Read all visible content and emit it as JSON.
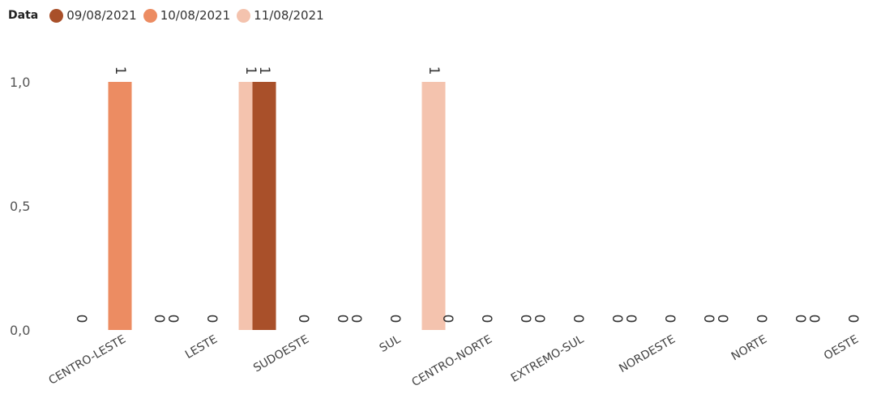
{
  "legend": {
    "title": "Data"
  },
  "chart_data": {
    "type": "bar",
    "categories": [
      "CENTRO-LESTE",
      "LESTE",
      "SUDOESTE",
      "SUL",
      "CENTRO-NORTE",
      "EXTREMO-SUL",
      "NORDESTE",
      "NORTE",
      "OESTE"
    ],
    "series": [
      {
        "name": "09/08/2021",
        "color": "#a9502a",
        "values": [
          0,
          0,
          1,
          0,
          0,
          0,
          0,
          0,
          0
        ]
      },
      {
        "name": "10/08/2021",
        "color": "#ec8c62",
        "values": [
          1,
          0,
          0,
          0,
          0,
          0,
          0,
          0,
          0
        ]
      },
      {
        "name": "11/08/2021",
        "color": "#f4c3ae",
        "values": [
          0,
          1,
          0,
          1,
          0,
          0,
          0,
          0,
          0
        ]
      }
    ],
    "yticks": [
      {
        "value": 0,
        "label": "0,0"
      },
      {
        "value": 0.5,
        "label": "0,5"
      },
      {
        "value": 1,
        "label": "1,0"
      }
    ],
    "ylim": [
      0,
      1
    ],
    "grid": false,
    "legend_position": "top-left",
    "data_labels": true
  }
}
